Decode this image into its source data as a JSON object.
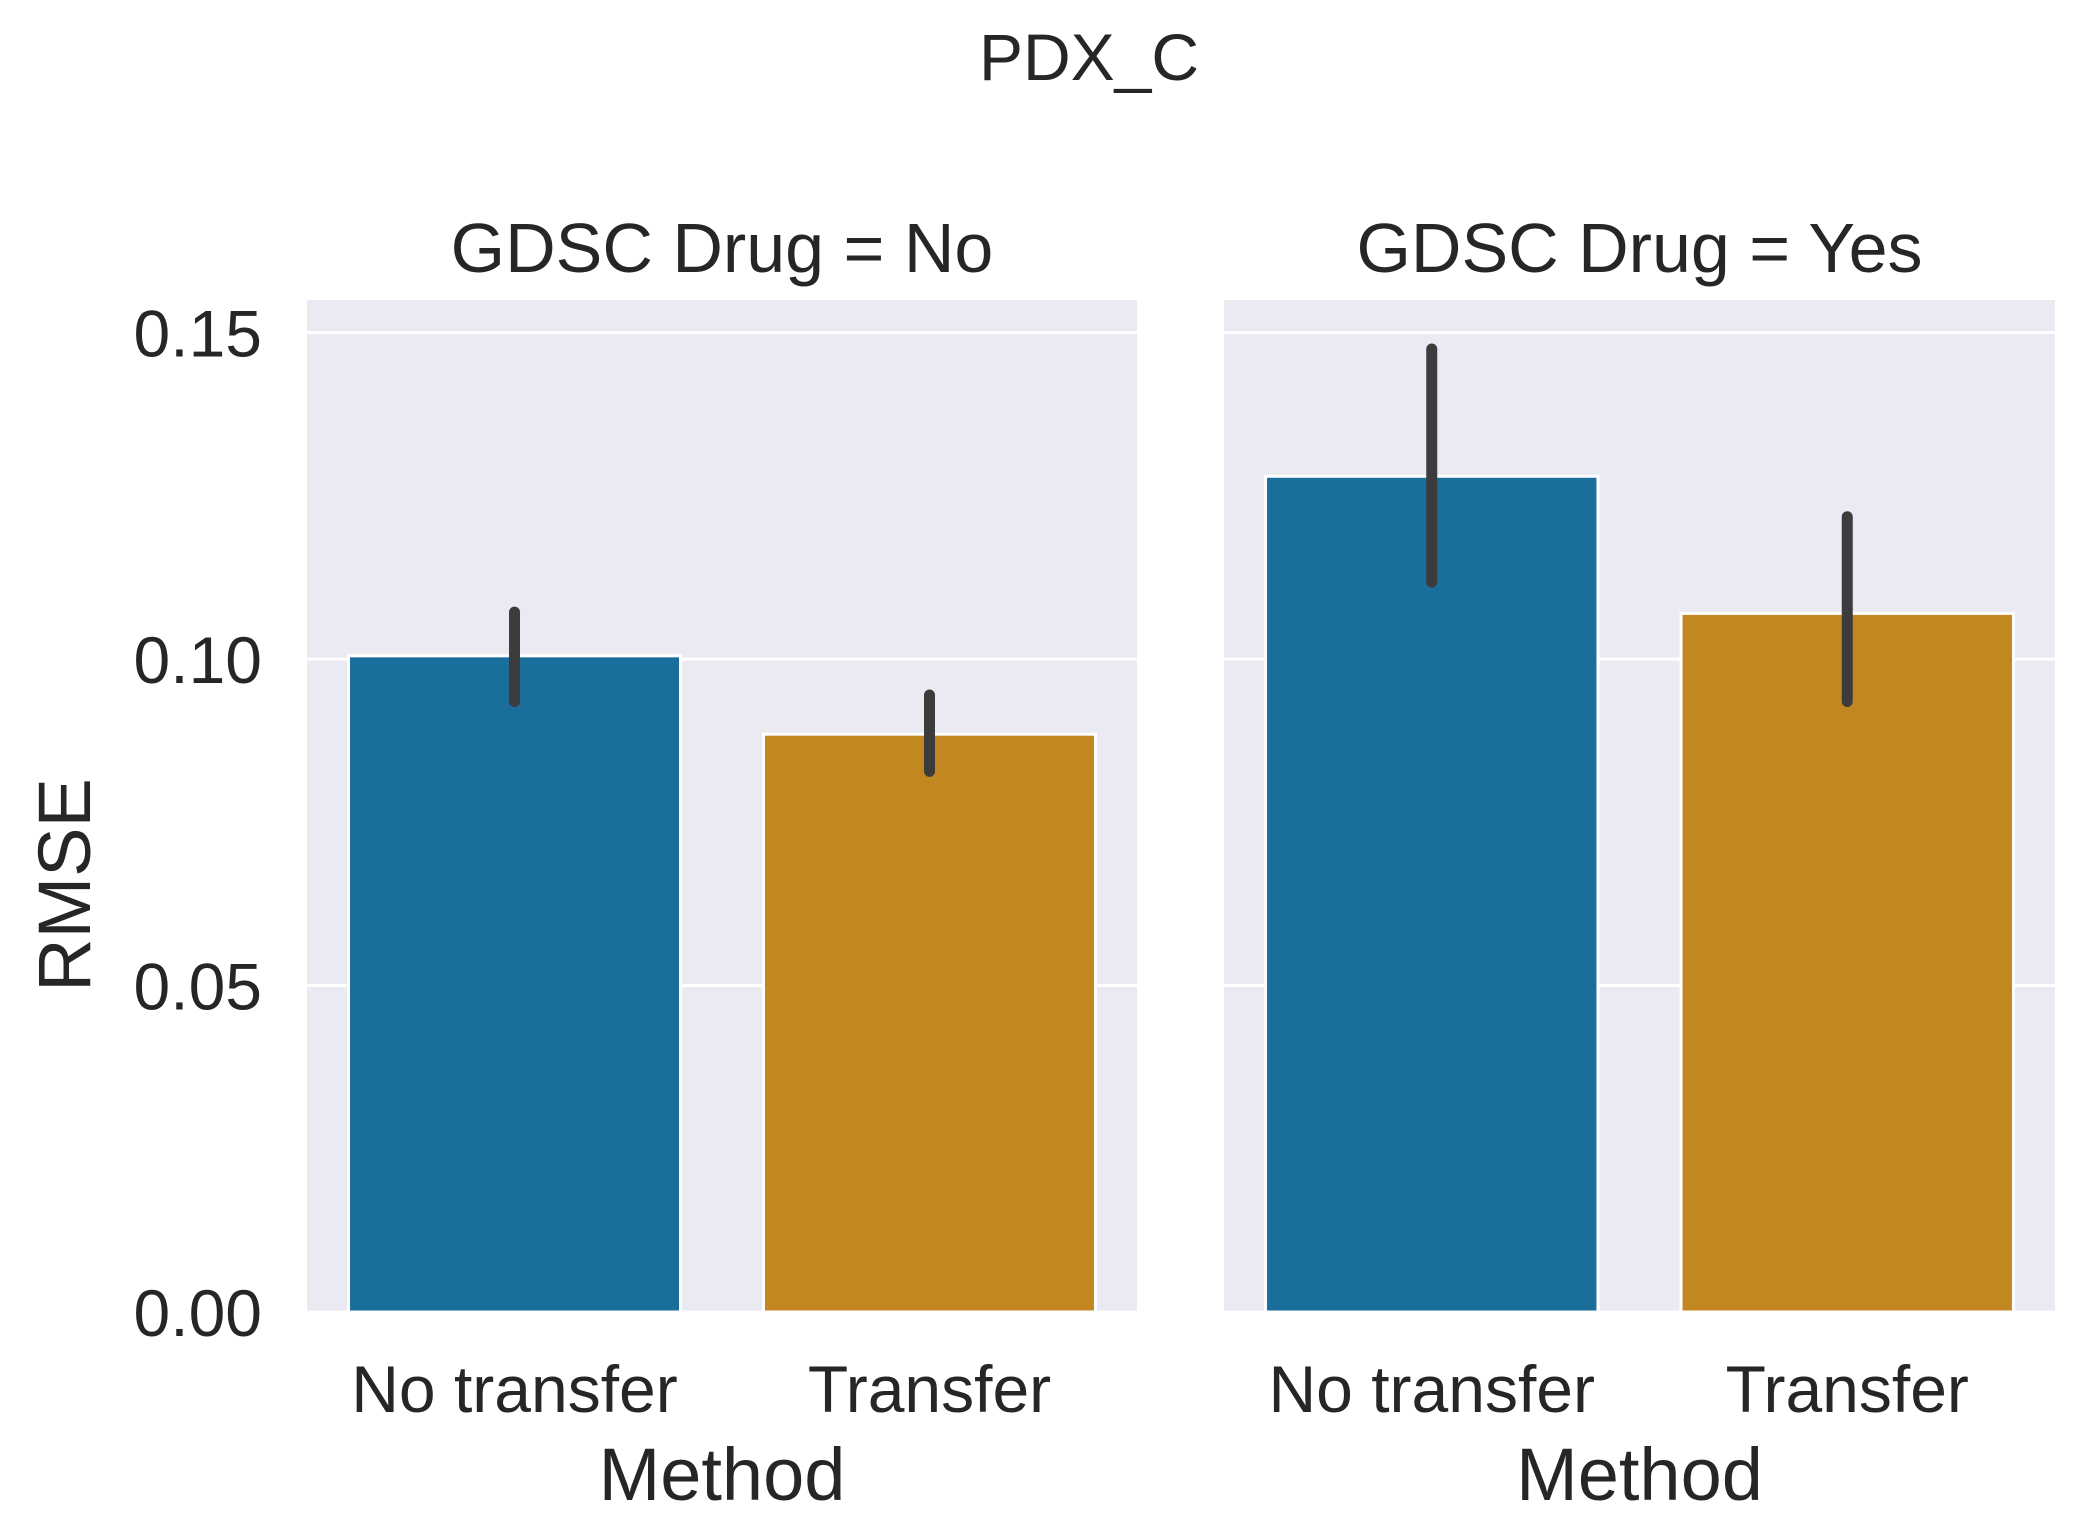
{
  "figure": {
    "suptitle": "PDX_C"
  },
  "colors": {
    "panel_bg": "#eaeaf2",
    "grid": "#ffffff",
    "no_transfer": "#1a6e9c",
    "transfer": "#c28720",
    "error_bar": "#3c3c3c",
    "text": "#262626"
  },
  "chart_data": [
    {
      "type": "bar",
      "title": "GDSC Drug = No",
      "xlabel": "Method",
      "ylabel": "RMSE",
      "ylim": [
        0,
        0.155
      ],
      "yticks": [
        "0.00",
        "0.05",
        "0.10",
        "0.15"
      ],
      "ytick_values": [
        0,
        0.05,
        0.1,
        0.15
      ],
      "grid": true,
      "categories": [
        "No transfer",
        "Transfer"
      ],
      "values": [
        0.1005,
        0.0885
      ],
      "error_low": [
        0.0935,
        0.0828
      ],
      "error_high": [
        0.1072,
        0.0945
      ]
    },
    {
      "type": "bar",
      "title": "GDSC Drug = Yes",
      "xlabel": "Method",
      "ylabel": "",
      "ylim": [
        0,
        0.155
      ],
      "yticks": [
        "0.00",
        "0.05",
        "0.10",
        "0.15"
      ],
      "ytick_values": [
        0,
        0.05,
        0.1,
        0.15
      ],
      "grid": true,
      "categories": [
        "No transfer",
        "Transfer"
      ],
      "values": [
        0.128,
        0.107
      ],
      "error_low": [
        0.1118,
        0.0935
      ],
      "error_high": [
        0.1475,
        0.1218
      ]
    }
  ]
}
